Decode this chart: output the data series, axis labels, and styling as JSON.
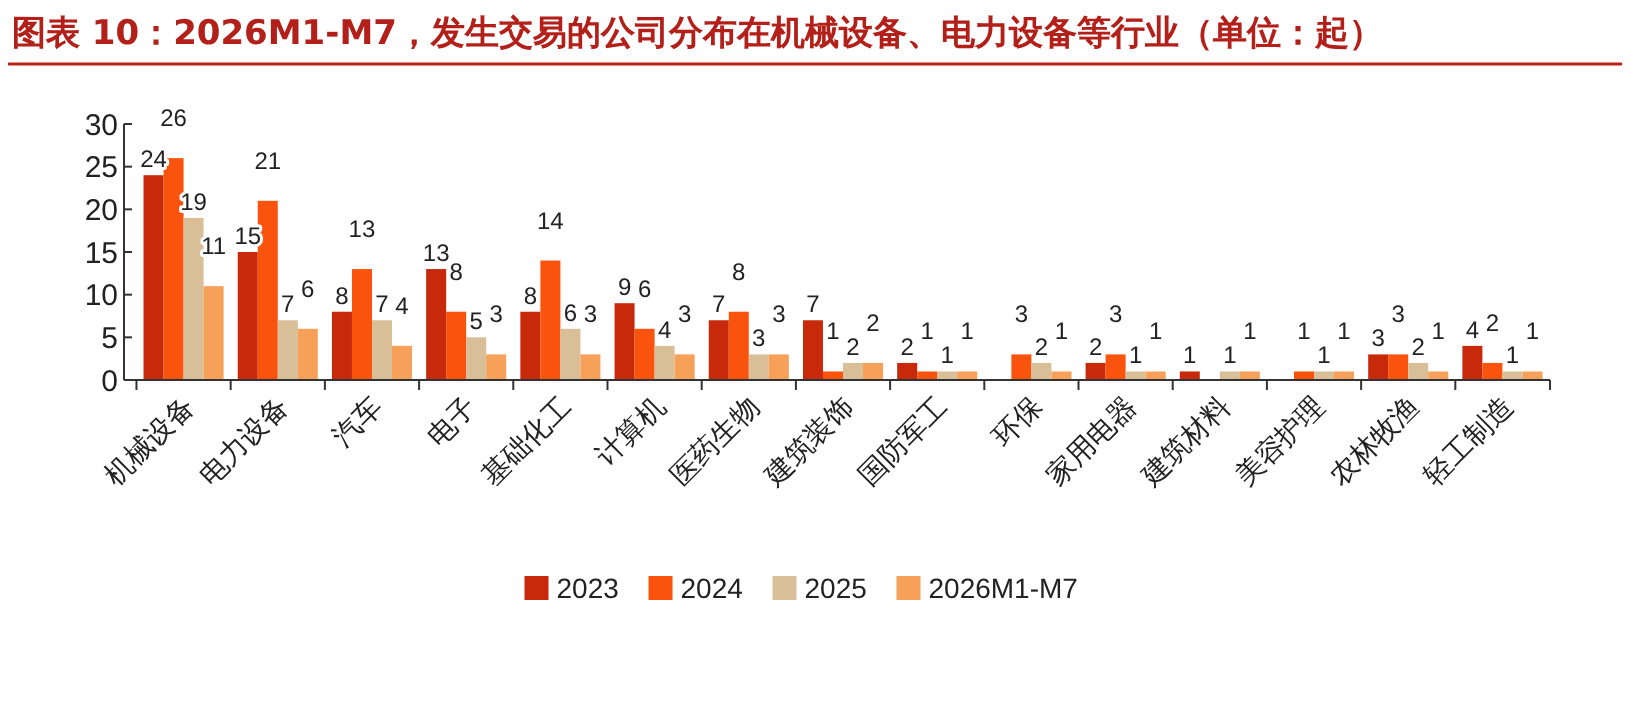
{
  "chart_data": {
    "type": "bar",
    "title": "图表 10：2026M1-M7，发生交易的公司分布在机械设备、电力设备等行业（单位：起）",
    "categories": [
      "机械设备",
      "电力设备",
      "汽车",
      "电子",
      "基础化工",
      "计算机",
      "医药生物",
      "建筑装饰",
      "国防军工",
      "环保",
      "家用电器",
      "建筑材料",
      "美容护理",
      "农林牧渔",
      "轻工制造"
    ],
    "series": [
      {
        "name": "2023",
        "color": "#c8290a",
        "values": [
          24,
          15,
          8,
          13,
          8,
          9,
          7,
          7,
          2,
          null,
          2,
          1,
          null,
          3,
          4
        ]
      },
      {
        "name": "2024",
        "color": "#f9530d",
        "values": [
          26,
          21,
          13,
          8,
          14,
          6,
          8,
          1,
          1,
          3,
          3,
          null,
          1,
          3,
          2
        ]
      },
      {
        "name": "2025",
        "color": "#d9bf98",
        "values": [
          19,
          7,
          7,
          5,
          6,
          4,
          3,
          2,
          1,
          2,
          1,
          1,
          1,
          2,
          1
        ]
      },
      {
        "name": "2026M1-M7",
        "color": "#f7a05a",
        "values": [
          11,
          6,
          4,
          3,
          3,
          3,
          3,
          2,
          1,
          1,
          1,
          1,
          1,
          1,
          1
        ]
      }
    ],
    "ylim": [
      0,
      30
    ],
    "yticks": [
      0,
      5,
      10,
      15,
      20,
      25,
      30
    ],
    "grid": false,
    "legend": "bottom",
    "data_labels": true
  }
}
